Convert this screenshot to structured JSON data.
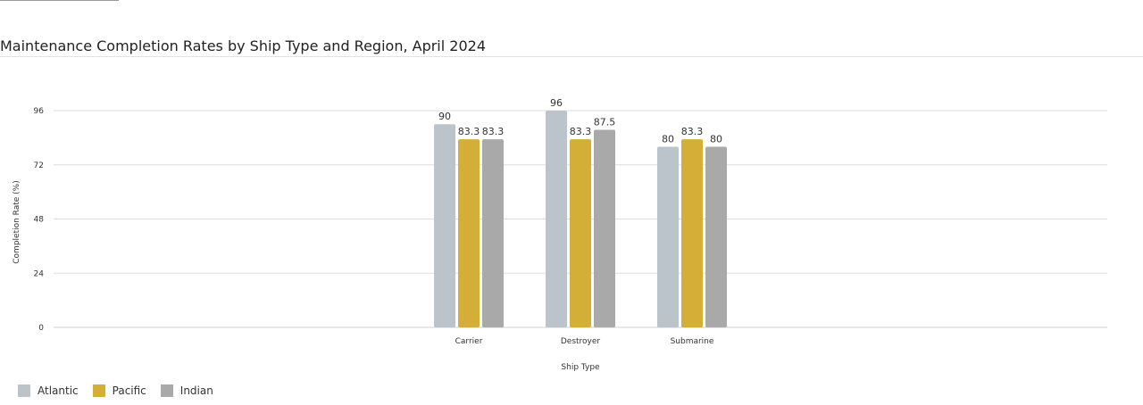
{
  "chart_data": {
    "type": "bar",
    "title": "Maintenance Completion Rates by Ship Type and Region, April 2024",
    "xlabel": "Ship Type",
    "ylabel": "Completion Rate (%)",
    "categories": [
      "Carrier",
      "Destroyer",
      "Submarine"
    ],
    "series": [
      {
        "name": "Atlantic",
        "values": [
          90,
          96,
          80
        ],
        "labels": [
          "90",
          "96",
          "80"
        ],
        "color": "#bcc4cb"
      },
      {
        "name": "Pacific",
        "values": [
          83.3,
          83.3,
          83.3
        ],
        "labels": [
          "83.3",
          "83.3",
          "83.3"
        ],
        "color": "#d4af37"
      },
      {
        "name": "Indian",
        "values": [
          83.3,
          87.5,
          80
        ],
        "labels": [
          "83.3",
          "87.5",
          "80"
        ],
        "color": "#a9a9a9"
      }
    ],
    "ylim": [
      0,
      96
    ],
    "yticks": [
      "0",
      "24",
      "48",
      "72",
      "96"
    ],
    "grid": true,
    "legend": "bottom-left"
  }
}
